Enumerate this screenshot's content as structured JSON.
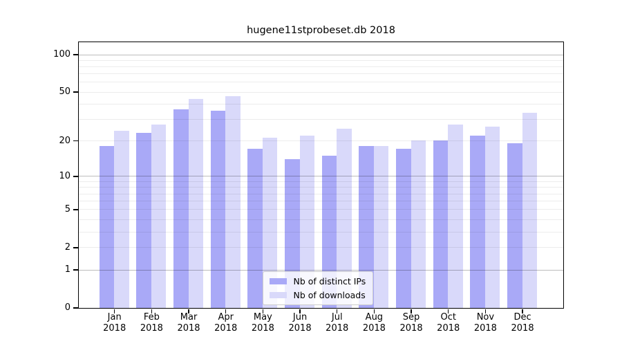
{
  "title": "hugene11stprobeset.db 2018",
  "chart_data": {
    "type": "bar",
    "title": "hugene11stprobeset.db 2018",
    "categories": [
      "Jan",
      "Feb",
      "Mar",
      "Apr",
      "May",
      "Jun",
      "Jul",
      "Aug",
      "Sep",
      "Oct",
      "Nov",
      "Dec"
    ],
    "year_label": "2018",
    "series": [
      {
        "name": "Nb of distinct IPs",
        "color": "#a9a9f7",
        "values": [
          18,
          23,
          36,
          35,
          17,
          14,
          15,
          18,
          17,
          20,
          22,
          19
        ]
      },
      {
        "name": "Nb of downloads",
        "color": "#d9d9fa",
        "values": [
          24,
          27,
          44,
          46,
          21,
          22,
          25,
          18,
          20,
          27,
          26,
          34
        ]
      }
    ],
    "y_scale": "log10(1+v)",
    "y_ticks": [
      0,
      1,
      2,
      5,
      10,
      20,
      50,
      100
    ],
    "y_minor_gridlines": [
      2,
      3,
      4,
      5,
      6,
      7,
      8,
      9,
      20,
      30,
      40,
      50,
      60,
      70,
      80,
      90
    ],
    "y_major_gridlines": [
      1,
      10,
      100
    ],
    "ylim": [
      0,
      126
    ],
    "grid": true,
    "legend_position": "bottom-center"
  }
}
